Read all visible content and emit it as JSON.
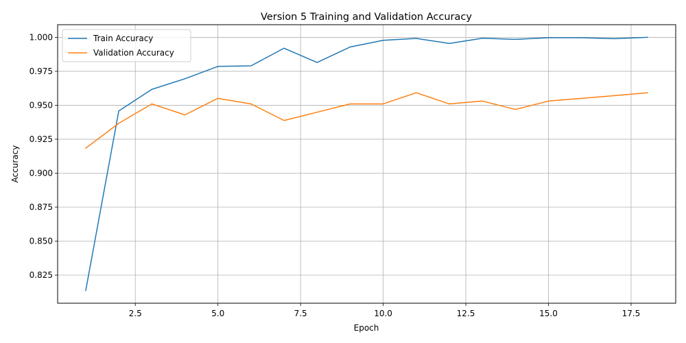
{
  "chart_data": {
    "type": "line",
    "title": "Version 5 Training and Validation Accuracy",
    "xlabel": "Epoch",
    "ylabel": "Accuracy",
    "x": [
      1,
      2,
      3,
      4,
      5,
      6,
      7,
      8,
      9,
      10,
      11,
      12,
      13,
      14,
      15,
      16,
      17,
      18
    ],
    "series": [
      {
        "name": "Train Accuracy",
        "color": "#1f77b4",
        "values": [
          0.8136,
          0.9458,
          0.9617,
          0.9695,
          0.9786,
          0.979,
          0.992,
          0.9815,
          0.9929,
          0.9978,
          0.9992,
          0.9955,
          0.9993,
          0.9985,
          0.9997,
          0.9997,
          0.999,
          1.0
        ]
      },
      {
        "name": "Validation Accuracy",
        "color": "#ff7f0e",
        "values": [
          0.9184,
          0.9367,
          0.951,
          0.9429,
          0.9551,
          0.951,
          0.9388,
          0.9449,
          0.951,
          0.951,
          0.9592,
          0.951,
          0.9531,
          0.9469,
          0.9531,
          0.9551,
          0.9571,
          0.9592
        ]
      }
    ],
    "xlim": [
      0.15,
      18.85
    ],
    "ylim": [
      0.8043,
      1.0093
    ],
    "xticks": [
      2.5,
      5.0,
      7.5,
      10.0,
      12.5,
      15.0,
      17.5
    ],
    "xtick_labels": [
      "2.5",
      "5.0",
      "7.5",
      "10.0",
      "12.5",
      "15.0",
      "17.5"
    ],
    "yticks": [
      0.825,
      0.85,
      0.875,
      0.9,
      0.925,
      0.95,
      0.975,
      1.0
    ],
    "ytick_labels": [
      "0.825",
      "0.850",
      "0.875",
      "0.900",
      "0.925",
      "0.950",
      "0.975",
      "1.000"
    ],
    "grid": true,
    "legend_position": "top-left"
  }
}
